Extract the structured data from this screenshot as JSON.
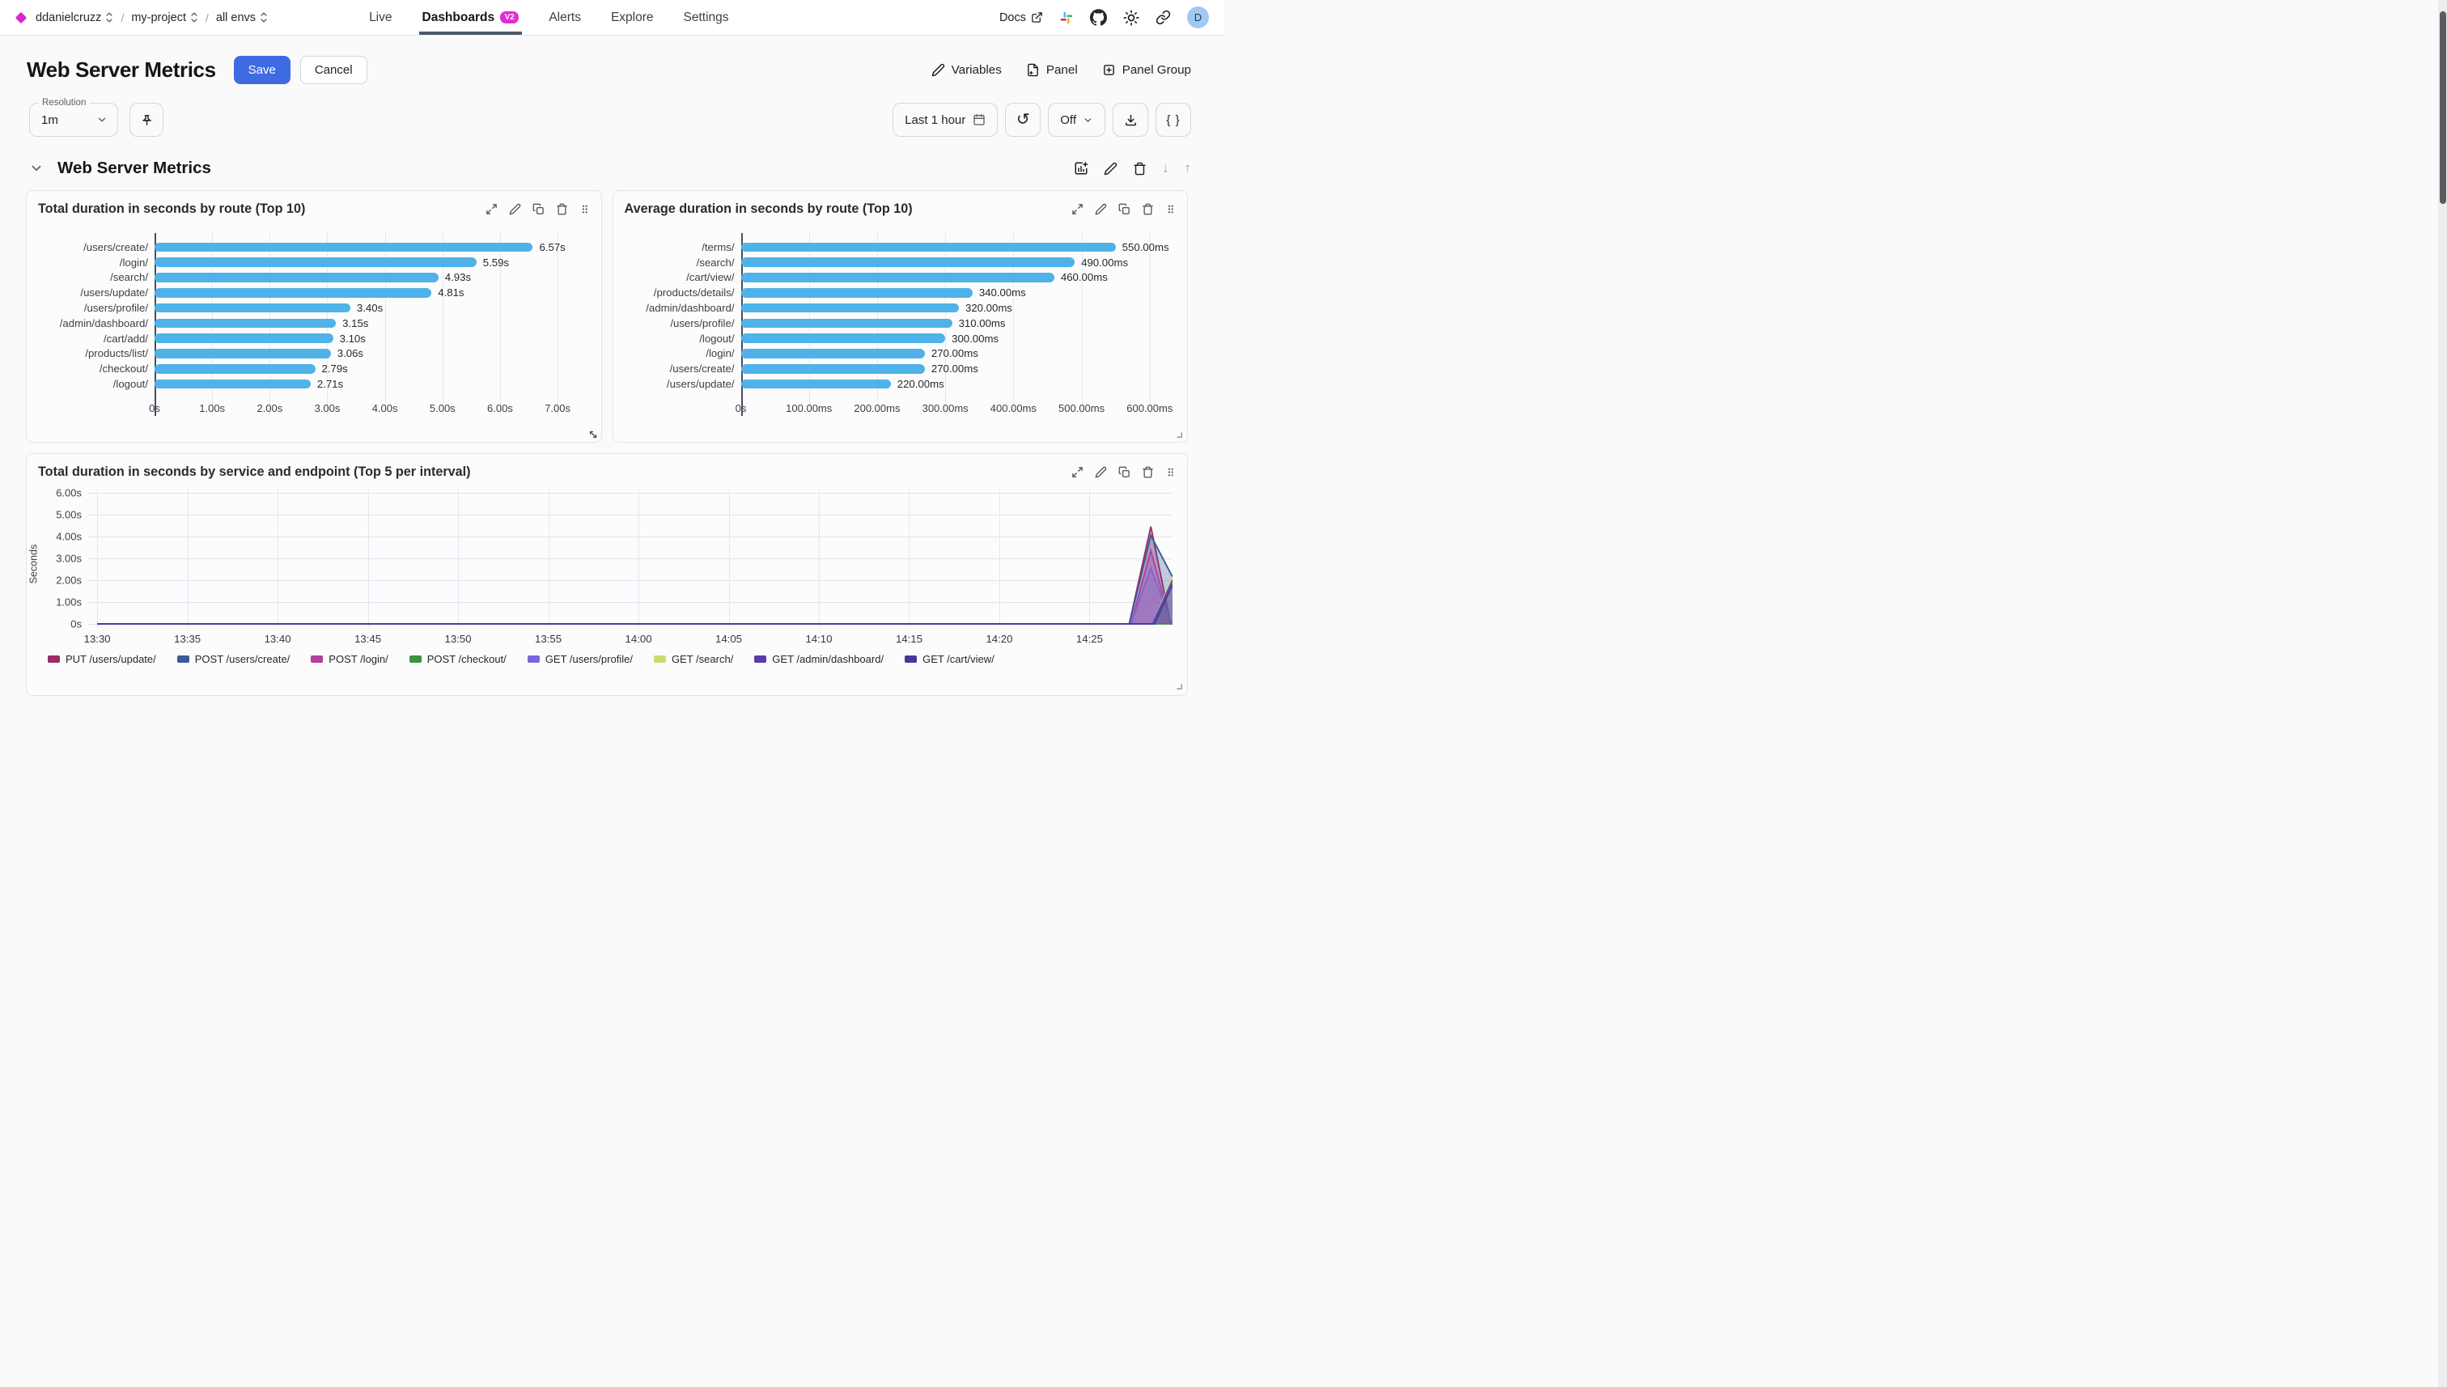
{
  "nav": {
    "breadcrumb": {
      "org": "ddanielcruzz",
      "project": "my-project",
      "env": "all envs"
    },
    "tabs": [
      {
        "label": "Live",
        "active": false
      },
      {
        "label": "Dashboards",
        "active": true,
        "badge": "V2"
      },
      {
        "label": "Alerts",
        "active": false
      },
      {
        "label": "Explore",
        "active": false
      },
      {
        "label": "Settings",
        "active": false
      }
    ],
    "docs_label": "Docs",
    "avatar_initial": "D"
  },
  "header": {
    "title": "Web Server Metrics",
    "save_label": "Save",
    "cancel_label": "Cancel",
    "actions": [
      {
        "label": "Variables",
        "icon": "pencil-icon"
      },
      {
        "label": "Panel",
        "icon": "file-plus-icon"
      },
      {
        "label": "Panel Group",
        "icon": "square-plus-icon"
      }
    ]
  },
  "toolbar": {
    "resolution_label": "Resolution",
    "resolution_value": "1m",
    "time_range": "Last 1 hour",
    "auto_refresh": "Off",
    "braces_label": "{ }"
  },
  "section": {
    "title": "Web Server Metrics"
  },
  "chart_data": [
    {
      "type": "bar",
      "orientation": "horizontal",
      "title": "Total duration in seconds by route (Top 10)",
      "categories": [
        "/users/create/",
        "/login/",
        "/search/",
        "/users/update/",
        "/users/profile/",
        "/admin/dashboard/",
        "/cart/add/",
        "/products/list/",
        "/checkout/",
        "/logout/"
      ],
      "values": [
        6.57,
        5.59,
        4.93,
        4.81,
        3.4,
        3.15,
        3.1,
        3.06,
        2.79,
        2.71
      ],
      "value_labels": [
        "6.57s",
        "5.59s",
        "4.93s",
        "4.81s",
        "3.40s",
        "3.15s",
        "3.10s",
        "3.06s",
        "2.79s",
        "2.71s"
      ],
      "xticks": [
        0,
        1,
        2,
        3,
        4,
        5,
        6,
        7
      ],
      "xtick_labels": [
        "0s",
        "1.00s",
        "2.00s",
        "3.00s",
        "4.00s",
        "5.00s",
        "6.00s",
        "7.00s"
      ],
      "xmax": 7.61,
      "bar_color": "#4fb2e8"
    },
    {
      "type": "bar",
      "orientation": "horizontal",
      "title": "Average duration in seconds by route (Top 10)",
      "categories": [
        "/terms/",
        "/search/",
        "/cart/view/",
        "/products/details/",
        "/admin/dashboard/",
        "/users/profile/",
        "/logout/",
        "/login/",
        "/users/create/",
        "/users/update/"
      ],
      "values": [
        550,
        490,
        460,
        340,
        320,
        310,
        300,
        270,
        270,
        220
      ],
      "value_labels": [
        "550.00ms",
        "490.00ms",
        "460.00ms",
        "340.00ms",
        "320.00ms",
        "310.00ms",
        "300.00ms",
        "270.00ms",
        "270.00ms",
        "220.00ms"
      ],
      "xticks": [
        0,
        100,
        200,
        300,
        400,
        500,
        600
      ],
      "xtick_labels": [
        "0s",
        "100.00ms",
        "200.00ms",
        "300.00ms",
        "400.00ms",
        "500.00ms",
        "600.00ms"
      ],
      "xmax": 643,
      "bar_color": "#4fb2e8"
    },
    {
      "type": "area",
      "title": "Total duration in seconds by service and endpoint (Top 5 per interval)",
      "ylabel": "Seconds",
      "yticks": [
        0,
        1,
        2,
        3,
        4,
        5,
        6
      ],
      "ytick_labels": [
        "0s",
        "1.00s",
        "2.00s",
        "3.00s",
        "4.00s",
        "5.00s",
        "6.00s"
      ],
      "ymin": -0.15,
      "ymax": 6.15,
      "x_start_label": "13:30",
      "xtick_minutes": [
        0,
        5,
        10,
        15,
        20,
        25,
        30,
        35,
        40,
        45,
        50,
        55
      ],
      "xtick_labels": [
        "13:30",
        "13:35",
        "13:40",
        "13:45",
        "13:50",
        "13:55",
        "14:00",
        "14:05",
        "14:10",
        "14:15",
        "14:20",
        "14:25"
      ],
      "x_total_minutes": 59.6,
      "series": [
        {
          "name": "PUT /users/update/",
          "color": "#9c2b66",
          "points": [
            [
              0,
              0
            ],
            [
              57.2,
              0
            ],
            [
              58.4,
              4.45
            ],
            [
              59.5,
              0
            ],
            [
              59.6,
              0
            ]
          ]
        },
        {
          "name": "POST /users/create/",
          "color": "#3d5a99",
          "points": [
            [
              0,
              0
            ],
            [
              57.2,
              0
            ],
            [
              58.4,
              4.05
            ],
            [
              59.6,
              2.15
            ]
          ]
        },
        {
          "name": "POST /login/",
          "color": "#b23f9e",
          "points": [
            [
              0,
              0
            ],
            [
              57.3,
              0
            ],
            [
              58.4,
              3.35
            ],
            [
              59.5,
              0
            ],
            [
              59.6,
              0
            ]
          ]
        },
        {
          "name": "POST /checkout/",
          "color": "#3f9146",
          "points": [
            [
              0,
              0
            ],
            [
              59.6,
              0
            ]
          ]
        },
        {
          "name": "GET /users/profile/",
          "color": "#7a68da",
          "points": [
            [
              0,
              0
            ],
            [
              57.3,
              0
            ],
            [
              58.4,
              2.55
            ],
            [
              59.55,
              0
            ],
            [
              59.6,
              0
            ]
          ]
        },
        {
          "name": "GET /search/",
          "color": "#ccdc6c",
          "points": [
            [
              0,
              0
            ],
            [
              58.5,
              0
            ],
            [
              59.6,
              2.15
            ]
          ]
        },
        {
          "name": "GET /admin/dashboard/",
          "color": "#5a3da8",
          "points": [
            [
              0,
              0
            ],
            [
              58.5,
              0
            ],
            [
              59.6,
              2.0
            ]
          ]
        },
        {
          "name": "GET /cart/view/",
          "color": "#403a9f",
          "points": [
            [
              0,
              0
            ],
            [
              58.6,
              0
            ],
            [
              59.6,
              1.8
            ]
          ]
        }
      ]
    }
  ]
}
